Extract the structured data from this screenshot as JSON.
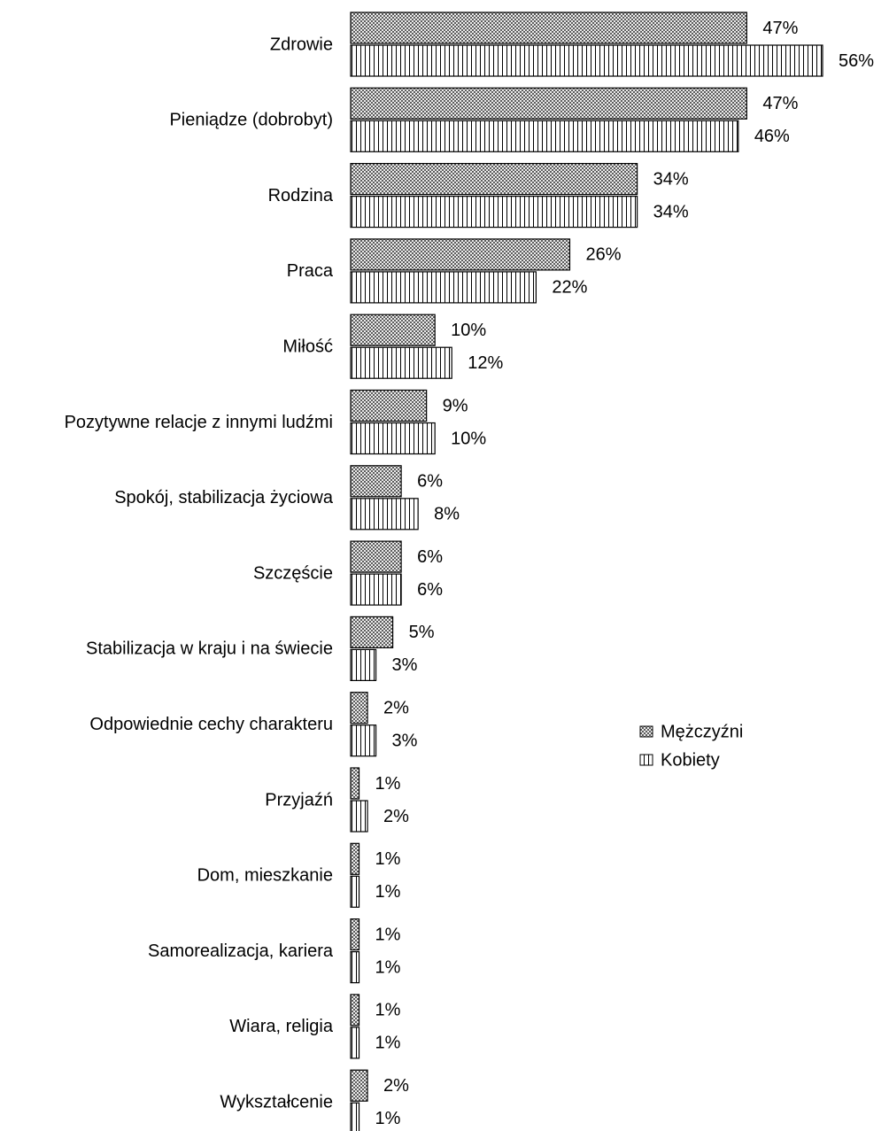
{
  "chart_data": {
    "type": "hbar",
    "categories": [
      "Zdrowie",
      "Pieniądze (dobrobyt)",
      "Rodzina",
      "Praca",
      "Miłość",
      "Pozytywne relacje z innymi ludźmi",
      "Spokój, stabilizacja życiowa",
      "Szczęście",
      "Stabilizacja w kraju i na świecie",
      "Odpowiednie cechy charakteru",
      "Przyjaźń",
      "Dom, mieszkanie",
      "Samorealizacja, kariera",
      "Wiara, religia",
      "Wykształcenie"
    ],
    "series": [
      {
        "name": "Mężczyźni",
        "color": "#000000",
        "pattern": "crosshatch",
        "values": [
          47,
          47,
          34,
          26,
          10,
          9,
          6,
          6,
          5,
          2,
          1,
          1,
          1,
          1,
          2
        ],
        "value_labels": [
          "47%",
          "47%",
          "34%",
          "26%",
          "10%",
          "9%",
          "6%",
          "6%",
          "5%",
          "2%",
          "1%",
          "1%",
          "1%",
          "1%",
          "2%"
        ]
      },
      {
        "name": "Kobiety",
        "color": "#000000",
        "pattern": "vertical",
        "values": [
          56,
          46,
          34,
          22,
          12,
          10,
          8,
          6,
          3,
          3,
          2,
          1,
          1,
          1,
          1
        ],
        "value_labels": [
          "56%",
          "46%",
          "34%",
          "22%",
          "12%",
          "10%",
          "8%",
          "6%",
          "3%",
          "3%",
          "2%",
          "1%",
          "1%",
          "1%",
          "1%"
        ]
      }
    ],
    "xlim": [
      0,
      56
    ],
    "legend": "right"
  }
}
